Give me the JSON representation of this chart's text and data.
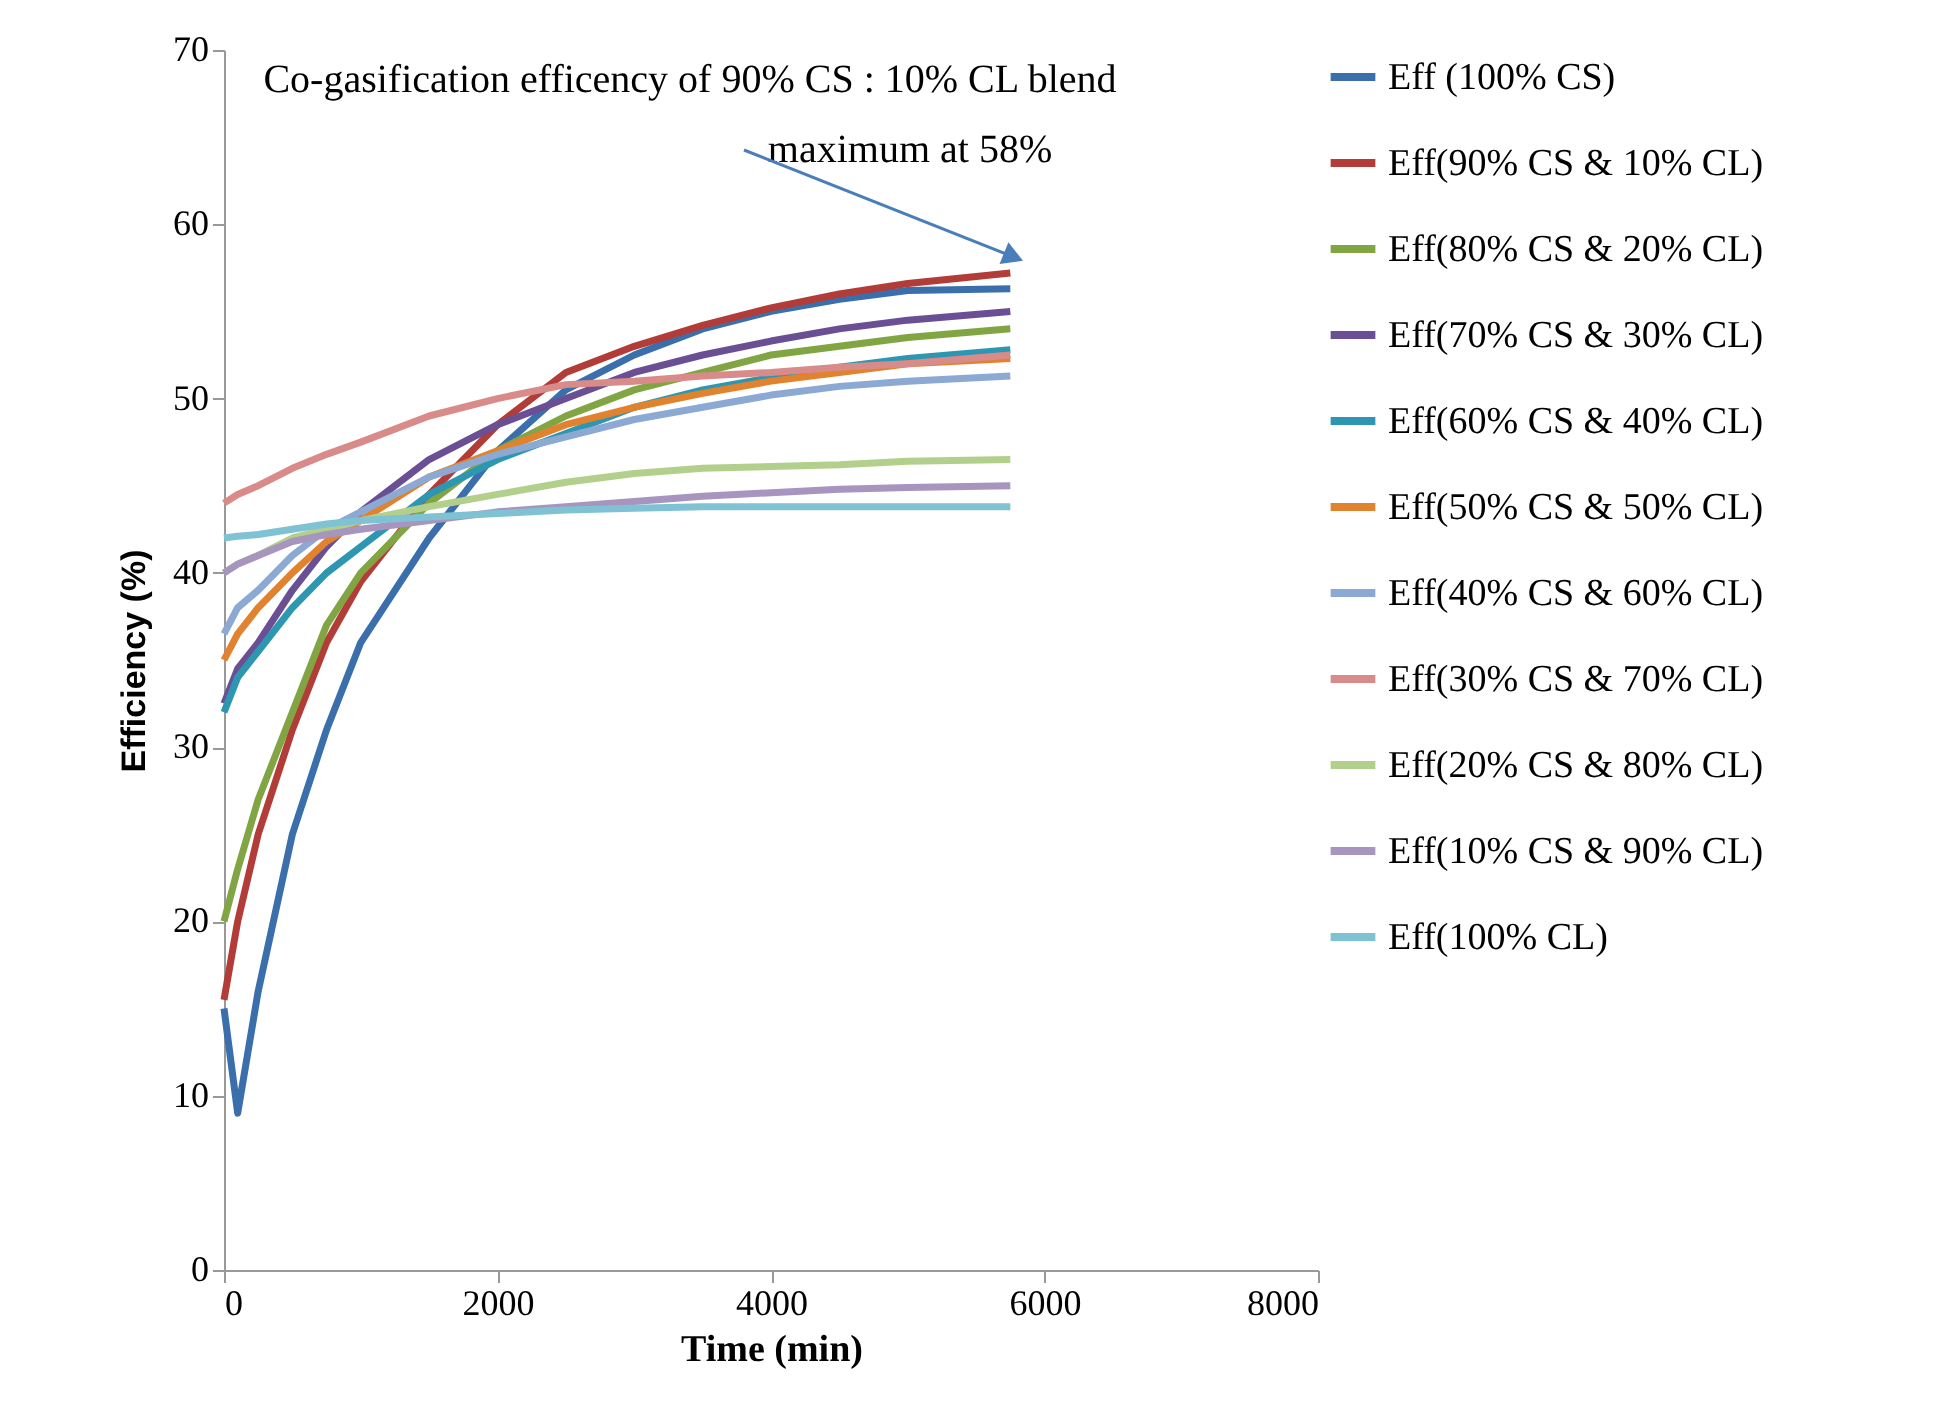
{
  "chart_data": {
    "type": "line",
    "xlabel": "Time (min)",
    "ylabel": "Efficiency (%)",
    "xlim": [
      0,
      8000
    ],
    "xticks": [
      0,
      2000,
      4000,
      6000,
      8000
    ],
    "ylim": [
      0,
      70
    ],
    "yticks": [
      0,
      10,
      20,
      30,
      40,
      50,
      60,
      70
    ],
    "grid": false,
    "legend": "right",
    "marker": "none",
    "line_style": "solid",
    "x": [
      0,
      100,
      250,
      500,
      750,
      1000,
      1500,
      2000,
      2500,
      3000,
      3500,
      4000,
      4500,
      5000,
      5750
    ],
    "annotations": [
      {
        "text": "Co-gasification  efficency of 90% CS : 10% CL blend\nmaximum at 58%",
        "x": 5750,
        "y": 58.2
      }
    ],
    "series": [
      {
        "name": "Eff (100% CS)",
        "color": "#3a6fac",
        "values": [
          15,
          9,
          16,
          25,
          31,
          36,
          42,
          47,
          50.5,
          52.5,
          54,
          55,
          55.7,
          56.2,
          56.3
        ]
      },
      {
        "name": "Eff(90% CS & 10% CL)",
        "color": "#b23c38",
        "values": [
          15.5,
          20,
          25,
          31,
          36,
          39.5,
          44.5,
          48.5,
          51.5,
          53,
          54.2,
          55.2,
          56,
          56.6,
          57.2
        ]
      },
      {
        "name": "Eff(80% CS & 20% CL)",
        "color": "#82a544",
        "values": [
          20,
          23,
          27,
          32,
          37,
          40,
          44,
          47,
          49,
          50.5,
          51.5,
          52.5,
          53,
          53.5,
          54
        ]
      },
      {
        "name": "Eff(70% CS & 30% CL)",
        "color": "#6a4f94",
        "values": [
          32.5,
          34.5,
          36,
          39,
          41.5,
          43.5,
          46.5,
          48.5,
          50,
          51.5,
          52.5,
          53.3,
          54,
          54.5,
          55
        ]
      },
      {
        "name": "Eff(60% CS & 40% CL)",
        "color": "#2d97b2",
        "values": [
          32,
          34,
          35.5,
          38,
          40,
          41.5,
          44.5,
          46.5,
          48,
          49.5,
          50.5,
          51.2,
          51.8,
          52.3,
          52.8
        ]
      },
      {
        "name": "Eff(50% CS & 50% CL)",
        "color": "#e0822e",
        "values": [
          35,
          36.5,
          38,
          40,
          41.8,
          43,
          45.5,
          47,
          48.5,
          49.5,
          50.3,
          51,
          51.5,
          52,
          52.3
        ]
      },
      {
        "name": "Eff(40% CS & 60% CL)",
        "color": "#8ba9d2",
        "values": [
          36.5,
          38,
          39,
          41,
          42.5,
          43.5,
          45.5,
          46.8,
          47.8,
          48.8,
          49.5,
          50.2,
          50.7,
          51,
          51.3
        ]
      },
      {
        "name": "Eff(30% CS & 70% CL)",
        "color": "#d88b88",
        "values": [
          44,
          44.5,
          45,
          46,
          46.8,
          47.5,
          49,
          50,
          50.8,
          51,
          51.3,
          51.5,
          51.8,
          52,
          52.5
        ]
      },
      {
        "name": "Eff(20% CS & 80% CL)",
        "color": "#b2d08b",
        "values": [
          40,
          40.5,
          41,
          42,
          42.5,
          43,
          43.8,
          44.5,
          45.2,
          45.7,
          46,
          46.1,
          46.2,
          46.4,
          46.5
        ]
      },
      {
        "name": "Eff(10% CS & 90% CL)",
        "color": "#a795bf",
        "values": [
          40,
          40.5,
          41,
          41.8,
          42.2,
          42.5,
          43,
          43.5,
          43.8,
          44.1,
          44.4,
          44.6,
          44.8,
          44.9,
          45
        ]
      },
      {
        "name": "Eff(100% CL)",
        "color": "#7fc2d4",
        "values": [
          42,
          42.1,
          42.2,
          42.5,
          42.8,
          43,
          43.2,
          43.4,
          43.6,
          43.7,
          43.8,
          43.8,
          43.8,
          43.8,
          43.8
        ]
      }
    ]
  }
}
